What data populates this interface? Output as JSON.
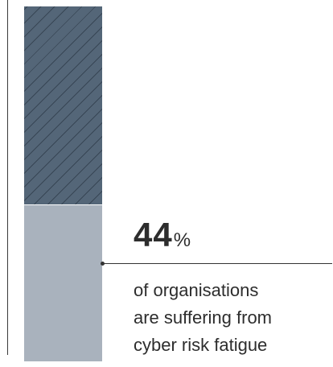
{
  "chart_data": {
    "type": "bar",
    "orientation": "stacked-single",
    "value": 44,
    "max": 100,
    "unit": "%",
    "value_label": "44",
    "unit_label": "%",
    "caption_lines": [
      "of organisations",
      "are suffering from",
      "cyber risk fatigue"
    ],
    "colors": {
      "value_segment": "#a9b2bd",
      "remaining_segment": "#546678",
      "text": "#2d2d2d"
    },
    "remaining_pattern": "diagonal-hatch"
  }
}
